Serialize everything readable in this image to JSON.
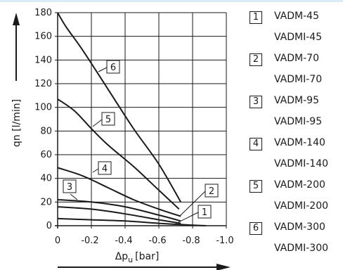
{
  "chart_data": {
    "type": "line",
    "xlabel": "Δp",
    "xlabel_sub": "u",
    "xlabel_unit": "[bar]",
    "ylabel": "qn [l/min]",
    "xlim": [
      0,
      -1.0
    ],
    "ylim": [
      0,
      180
    ],
    "x_ticks": [
      "0",
      "-0.2",
      "-0.4",
      "-0.6",
      "-0.8",
      "-1.0"
    ],
    "y_ticks": [
      "0",
      "20",
      "40",
      "60",
      "80",
      "100",
      "120",
      "140",
      "160",
      "180"
    ],
    "grid": true,
    "series": [
      {
        "name": "1",
        "x": [
          0,
          -0.2,
          -0.4,
          -0.6,
          -0.8,
          -0.88
        ],
        "y": [
          6,
          5,
          4,
          2,
          0.5,
          0
        ]
      },
      {
        "name": "2",
        "x": [
          0,
          -0.2,
          -0.4,
          -0.6,
          -0.73
        ],
        "y": [
          16,
          14,
          10,
          5,
          2
        ]
      },
      {
        "name": "3",
        "x": [
          0,
          -0.2,
          -0.4,
          -0.6,
          -0.73
        ],
        "y": [
          22,
          20,
          16,
          9,
          4
        ]
      },
      {
        "name": "4",
        "x": [
          0,
          -0.15,
          -0.3,
          -0.45,
          -0.6,
          -0.73
        ],
        "y": [
          49,
          42,
          32,
          22,
          14,
          8
        ]
      },
      {
        "name": "5",
        "x": [
          0,
          -0.1,
          -0.2,
          -0.3,
          -0.45,
          -0.6,
          -0.72
        ],
        "y": [
          107,
          97,
          82,
          68,
          50,
          30,
          14
        ]
      },
      {
        "name": "6",
        "x": [
          0,
          -0.05,
          -0.15,
          -0.3,
          -0.45,
          -0.6,
          -0.73
        ],
        "y": [
          180,
          168,
          148,
          115,
          82,
          52,
          20
        ]
      }
    ],
    "callouts": [
      "1",
      "2",
      "3",
      "4",
      "5",
      "6"
    ]
  },
  "legend": [
    {
      "num": "1",
      "line1": "VADM-45",
      "line2": "VADMI-45"
    },
    {
      "num": "2",
      "line1": "VADM-70",
      "line2": "VADMI-70"
    },
    {
      "num": "3",
      "line1": "VADM-95",
      "line2": "VADMI-95"
    },
    {
      "num": "4",
      "line1": "VADM-140",
      "line2": "VADMI-140"
    },
    {
      "num": "5",
      "line1": "VADM-200",
      "line2": "VADMI-200"
    },
    {
      "num": "6",
      "line1": "VADM-300",
      "line2": "VADMI-300"
    }
  ],
  "colors": {
    "line": "#1a1a1a",
    "grid": "#1a1a1a",
    "topline": "#d9ecf6"
  }
}
